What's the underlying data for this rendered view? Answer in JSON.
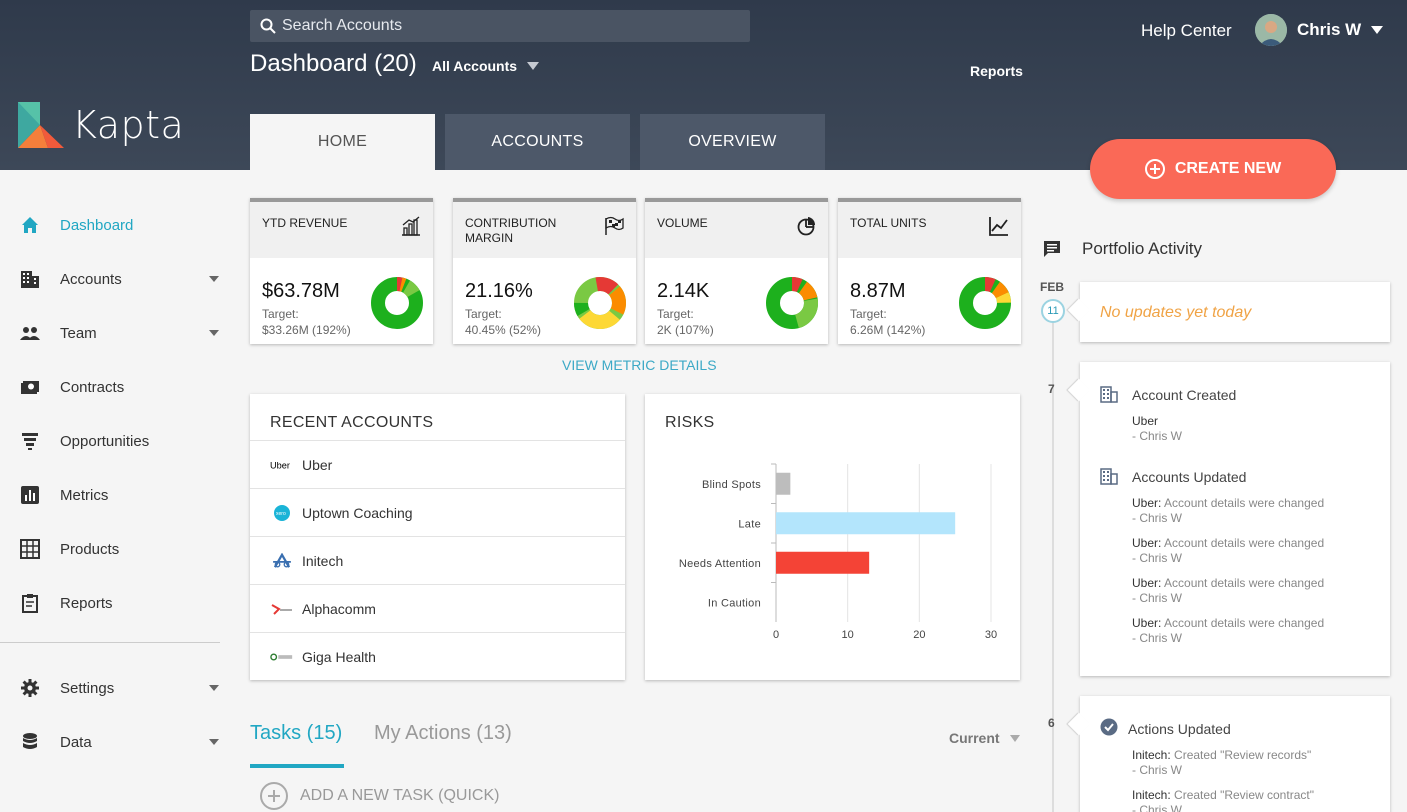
{
  "header": {
    "search_placeholder": "Search Accounts",
    "dashboard_title": "Dashboard (20)",
    "account_filter": "All Accounts",
    "reports_link": "Reports",
    "help_center": "Help Center",
    "user_name": "Chris W",
    "logo_text": "Kapta",
    "tabs": [
      "HOME",
      "ACCOUNTS",
      "OVERVIEW"
    ],
    "create_new": "CREATE NEW"
  },
  "sidebar": {
    "items": [
      {
        "label": "Dashboard",
        "icon": "home-icon"
      },
      {
        "label": "Accounts",
        "icon": "building-icon"
      },
      {
        "label": "Team",
        "icon": "people-icon"
      },
      {
        "label": "Contracts",
        "icon": "money-icon"
      },
      {
        "label": "Opportunities",
        "icon": "funnel-icon"
      },
      {
        "label": "Metrics",
        "icon": "bar-chart-icon"
      },
      {
        "label": "Products",
        "icon": "grid-icon"
      },
      {
        "label": "Reports",
        "icon": "clipboard-icon"
      }
    ],
    "bottom_items": [
      {
        "label": "Settings",
        "icon": "gear-icon"
      },
      {
        "label": "Data",
        "icon": "database-icon"
      }
    ]
  },
  "metrics": [
    {
      "title": "YTD REVENUE",
      "value": "$63.78M",
      "target_label": "Target:",
      "target": "$33.26M (192%)",
      "icon": "bar-chart-icon"
    },
    {
      "title": "CONTRIBUTION MARGIN",
      "value": "21.16%",
      "target_label": "Target:",
      "target": "40.45% (52%)",
      "icon": "flag-icon"
    },
    {
      "title": "VOLUME",
      "value": "2.14K",
      "target_label": "Target:",
      "target": "2K (107%)",
      "icon": "pie-icon"
    },
    {
      "title": "TOTAL UNITS",
      "value": "8.87M",
      "target_label": "Target:",
      "target": "6.26M (142%)",
      "icon": "line-chart-icon"
    }
  ],
  "view_metric_details": "VIEW METRIC DETAILS",
  "recent_accounts": {
    "title": "RECENT ACCOUNTS",
    "items": [
      "Uber",
      "Uptown Coaching",
      "Initech",
      "Alphacomm",
      "Giga Health"
    ]
  },
  "risks": {
    "title": "RISKS"
  },
  "chart_data": {
    "type": "bar",
    "orientation": "horizontal",
    "categories": [
      "Blind Spots",
      "Late",
      "Needs Attention",
      "In Caution"
    ],
    "values": [
      2,
      25,
      13,
      0
    ],
    "colors": [
      "#bdbdbd",
      "#b3e5fc",
      "#f44336",
      "#cccccc"
    ],
    "xlim": [
      0,
      30
    ],
    "xticks": [
      0,
      10,
      20,
      30
    ],
    "grid": true
  },
  "tasks": {
    "tab1": "Tasks (15)",
    "tab2": "My Actions (13)",
    "filter": "Current",
    "add_task": "ADD A NEW TASK (QUICK)"
  },
  "activity": {
    "title": "Portfolio Activity",
    "month": "FEB",
    "day1": "11",
    "no_updates": "No updates yet today",
    "day2": "7",
    "day3": "6",
    "card2": {
      "event1": "Account Created",
      "event1_line1": "Uber",
      "event1_line2": "- Chris W",
      "event2": "Accounts Updated",
      "updates": [
        {
          "account": "Uber:",
          "text": "Account details were changed",
          "by": "- Chris W"
        },
        {
          "account": "Uber:",
          "text": "Account details were changed",
          "by": "- Chris W"
        },
        {
          "account": "Uber:",
          "text": "Account details were changed",
          "by": "- Chris W"
        },
        {
          "account": "Uber:",
          "text": "Account details were changed",
          "by": "- Chris W"
        }
      ]
    },
    "card3": {
      "event": "Actions Updated",
      "updates": [
        {
          "account": "Initech:",
          "text": "Created \"Review records\"",
          "by": "- Chris W"
        },
        {
          "account": "Initech:",
          "text": "Created \"Review contract\"",
          "by": "- Chris W"
        }
      ]
    }
  },
  "colors": {
    "accent": "#21a7c3",
    "create": "#fa6957",
    "header": "#2f3a4b",
    "warning_text": "#f0a345"
  }
}
